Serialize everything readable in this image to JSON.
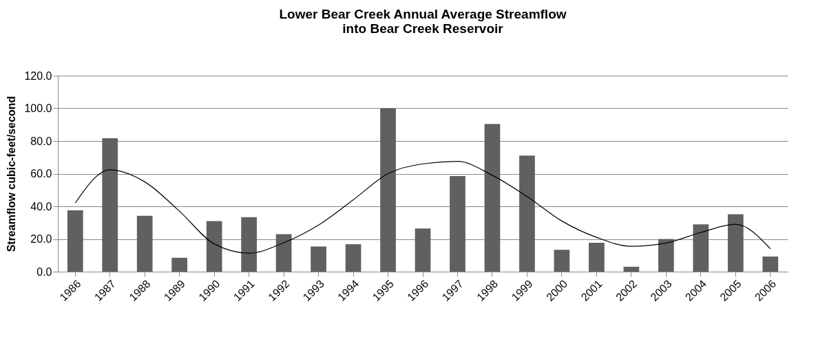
{
  "chart_data": {
    "type": "bar",
    "title": "Lower Bear Creek Annual Average Streamflow\ninto Bear Creek Reservoir",
    "ylabel": "Streamflow cubic-feet/second",
    "categories": [
      "1986",
      "1987",
      "1988",
      "1989",
      "1990",
      "1991",
      "1992",
      "1993",
      "1994",
      "1995",
      "1996",
      "1997",
      "1998",
      "1999",
      "2000",
      "2001",
      "2002",
      "2003",
      "2004",
      "2005",
      "2006"
    ],
    "series": [
      {
        "color": "#606060",
        "values": [
          37.6,
          81.7,
          34.2,
          8.5,
          31.0,
          33.4,
          23.0,
          15.4,
          16.8,
          100.0,
          26.4,
          58.5,
          90.4,
          71.1,
          13.4,
          17.7,
          3.0,
          20.0,
          28.9,
          35.2,
          9.3
        ]
      },
      {
        "type": "line",
        "color": "#000000",
        "values": [
          42,
          62.4,
          55,
          37,
          17,
          11.3,
          17.7,
          28.5,
          44,
          60,
          66,
          67.5,
          59,
          46,
          31,
          21,
          15.5,
          17.5,
          24,
          29,
          14
        ]
      }
    ],
    "ylim": [
      0,
      120
    ],
    "yticks": [
      {
        "value": 0,
        "label": "0.0"
      },
      {
        "value": 20,
        "label": "20.0"
      },
      {
        "value": 40,
        "label": "40.0"
      },
      {
        "value": 60,
        "label": "60.0"
      },
      {
        "value": 80,
        "label": "80.0"
      },
      {
        "value": 100,
        "label": "100.0"
      },
      {
        "value": 120,
        "label": "120.0"
      }
    ],
    "grid": "y",
    "marker": "none",
    "line_style": "solid"
  }
}
